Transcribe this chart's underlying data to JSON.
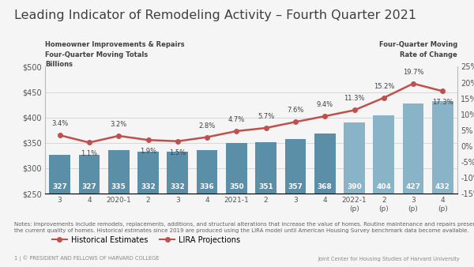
{
  "title": "Leading Indicator of Remodeling Activity – Fourth Quarter 2021",
  "left_label_line1": "Homeowner Improvements & Repairs",
  "left_label_line2": "Four-Quarter Moving Totals",
  "left_label_line3": "Billions",
  "right_label_line1": "Four-Quarter Moving",
  "right_label_line2": "Rate of Change",
  "categories": [
    "3",
    "4",
    "2020-1",
    "2",
    "3",
    "4",
    "2021-1",
    "2",
    "3",
    "4",
    "2022-1\n(p)",
    "2\n(p)",
    "3\n(p)",
    "4\n(p)"
  ],
  "bar_values": [
    327,
    327,
    335,
    332,
    332,
    336,
    350,
    351,
    357,
    368,
    390,
    404,
    427,
    432
  ],
  "bar_color_hist": "#5b8fa8",
  "bar_color_proj": "#89b4c8",
  "hist_bar_count": 10,
  "line_values": [
    3.4,
    1.1,
    3.2,
    1.9,
    1.5,
    2.8,
    4.7,
    5.7,
    7.6,
    9.4,
    11.3,
    15.2,
    19.7,
    17.3
  ],
  "line_color": "#c0504d",
  "ylim_left": [
    250,
    500
  ],
  "ylim_right": [
    -15,
    25
  ],
  "yticks_left": [
    250,
    300,
    350,
    400,
    450,
    500
  ],
  "yticks_right": [
    -15,
    -10,
    -5,
    0,
    5,
    10,
    15,
    20,
    25
  ],
  "legend_label_hist": "Historical Estimates",
  "legend_label_proj": "LIRA Projections",
  "notes_text": "Notes: Improvements include remodels, replacements, additions, and structural alterations that increase the value of homes. Routine maintenance and repairs preserve\nthe current quality of homes. Historical estimates since 2019 are produced using the LIRA model until American Housing Survey benchmark data become available.",
  "footer_left": "1 | © PRESIDENT AND FELLOWS OF HARVARD COLLEGE",
  "footer_right": "Joint Center for Housing Studies of Harvard University",
  "bg_color": "#f5f5f5",
  "title_color": "#404040",
  "axis_label_color": "#404040",
  "tick_label_color": "#555555",
  "bar_label_color": "#ffffff",
  "rate_label_color": "#404040"
}
